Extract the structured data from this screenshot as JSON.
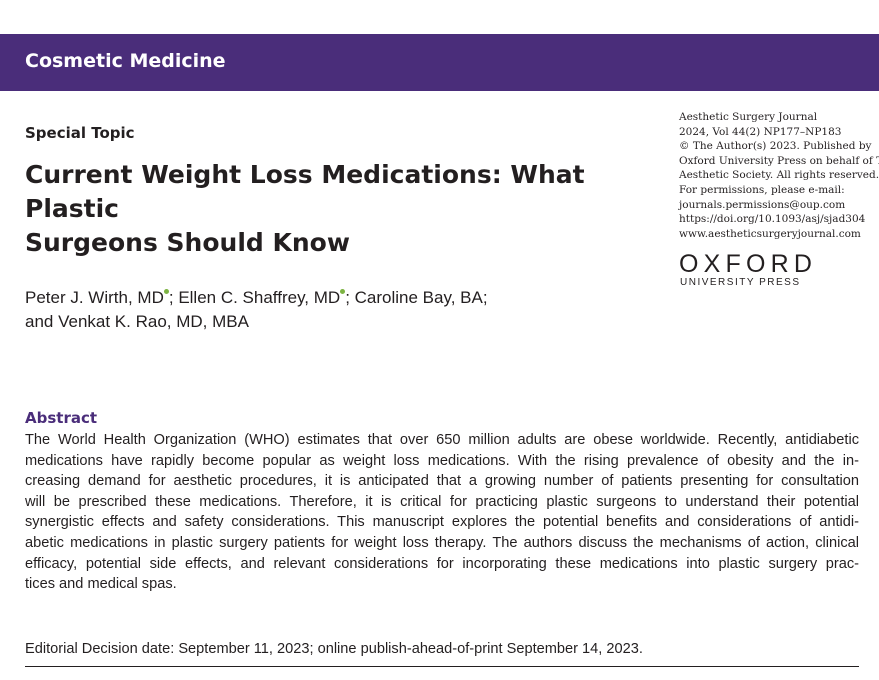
{
  "banner": {
    "section": "Cosmetic Medicine",
    "color": "#4a2d7a"
  },
  "article": {
    "category": "Special Topic",
    "title_lines": [
      "Current Weight Loss Medications: What Plastic",
      "Surgeons Should Know"
    ]
  },
  "journal_info": {
    "lines": [
      "Aesthetic Surgery Journal",
      "2024, Vol 44(2) NP177–NP183",
      "© The Author(s) 2023. Published by",
      "Oxford University Press on behalf of The",
      "Aesthetic Society. All rights reserved.",
      "For permissions, please e-mail:",
      "journals.permissions@oup.com",
      "https://doi.org/10.1093/asj/sjad304",
      "www.aestheticsurgeryjournal.com"
    ]
  },
  "publisher": {
    "name": "OXFORD",
    "subtitle": "UNIVERSITY PRESS"
  },
  "authors": {
    "author1": "Peter J. Wirth, MD",
    "author2": "Ellen C. Shaffrey, MD",
    "author3": "Caroline Bay, BA;",
    "author4": "and Venkat K. Rao, MD, MBA",
    "orcid_color": "#7cb342"
  },
  "abstract": {
    "heading": "Abstract",
    "heading_color": "#4a2d7a",
    "lines": [
      "The World Health Organization (WHO) estimates that over 650 million adults are obese worldwide. Recently, antidiabetic",
      "medications have rapidly become popular as weight loss medications. With the rising prevalence of obesity and the in-",
      "creasing demand for aesthetic procedures, it is anticipated that a growing number of patients presenting for consultation",
      "will be prescribed these medications. Therefore, it is critical for practicing plastic surgeons to understand their potential",
      "synergistic effects and safety considerations. This manuscript explores the potential benefits and considerations of antidi-",
      "abetic medications in plastic surgery patients for weight loss therapy. The authors discuss the mechanisms of action, clinical",
      "efficacy, potential side effects, and relevant considerations for incorporating these medications into plastic surgery prac-",
      "tices and medical spas."
    ]
  },
  "editorial": {
    "text": "Editorial Decision date: September 11, 2023; online publish-ahead-of-print September 14, 2023."
  }
}
